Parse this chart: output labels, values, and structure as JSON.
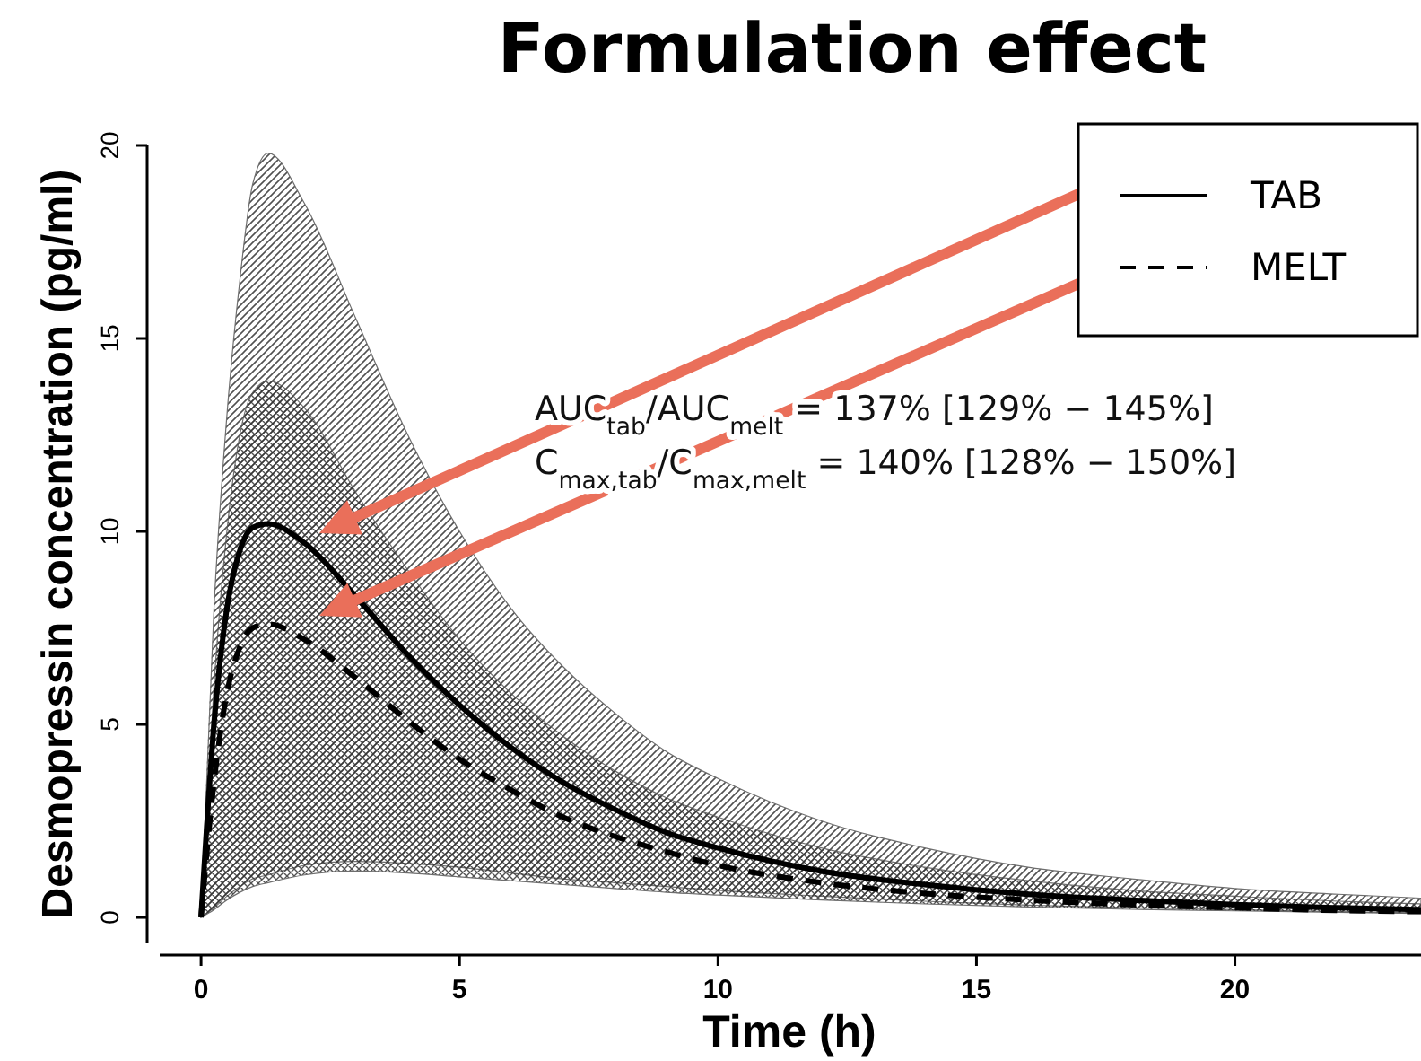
{
  "chart_data": {
    "type": "line",
    "title": "Formulation effect",
    "xlabel": "Time (h)",
    "ylabel": "Desmopressin concentration (pg/ml)",
    "x": [
      0,
      0.25,
      0.5,
      0.75,
      1,
      1.3,
      2,
      3,
      4,
      5,
      6,
      7,
      8,
      9,
      10,
      12,
      14,
      16,
      18,
      20,
      22,
      23.6
    ],
    "series": [
      {
        "name": "TAB",
        "color": "#000000",
        "line_style": "solid",
        "values": [
          0,
          5,
          8,
          9.5,
          10.1,
          10.2,
          9.7,
          8.3,
          6.8,
          5.5,
          4.4,
          3.5,
          2.8,
          2.2,
          1.8,
          1.2,
          0.85,
          0.6,
          0.45,
          0.33,
          0.25,
          0.2
        ],
        "lower": [
          0,
          0.25,
          0.55,
          0.8,
          1.0,
          1.1,
          1.35,
          1.45,
          1.4,
          1.3,
          1.15,
          1.0,
          0.9,
          0.8,
          0.7,
          0.55,
          0.42,
          0.32,
          0.25,
          0.2,
          0.15,
          0.12
        ],
        "upper": [
          0,
          8,
          13,
          16.5,
          19,
          19.8,
          18.5,
          15.5,
          12.5,
          10,
          8,
          6.5,
          5.3,
          4.3,
          3.6,
          2.5,
          1.8,
          1.3,
          1.0,
          0.75,
          0.6,
          0.5
        ]
      },
      {
        "name": "MELT",
        "color": "#000000",
        "line_style": "dashed",
        "values": [
          0,
          3.5,
          5.8,
          7,
          7.5,
          7.6,
          7.2,
          6.2,
          5.1,
          4.1,
          3.3,
          2.6,
          2.1,
          1.7,
          1.35,
          0.9,
          0.62,
          0.45,
          0.33,
          0.25,
          0.18,
          0.15
        ],
        "lower": [
          0,
          0.2,
          0.45,
          0.65,
          0.8,
          0.9,
          1.1,
          1.2,
          1.15,
          1.05,
          0.95,
          0.85,
          0.75,
          0.65,
          0.58,
          0.45,
          0.35,
          0.27,
          0.21,
          0.17,
          0.13,
          0.1
        ],
        "upper": [
          0,
          6,
          10,
          12.5,
          13.6,
          13.9,
          13.2,
          11,
          9,
          7.2,
          5.8,
          4.7,
          3.8,
          3.1,
          2.6,
          1.8,
          1.3,
          0.95,
          0.7,
          0.55,
          0.42,
          0.35
        ]
      }
    ],
    "xlim": [
      -0.8,
      23.6
    ],
    "ylim": [
      -0.65,
      20
    ],
    "xticks": [
      0,
      5,
      10,
      15,
      20
    ],
    "yticks": [
      0,
      5,
      10,
      15,
      20
    ],
    "grid": false,
    "legend": "top right",
    "marker": "none",
    "annotations": [
      "AUC$_{tab}$/AUC$_{melt}$ = 137% [129% − 145%]",
      "C$_{max,tab}$/C$_{max,melt}$ = 140% [128% − 150%]"
    ]
  }
}
